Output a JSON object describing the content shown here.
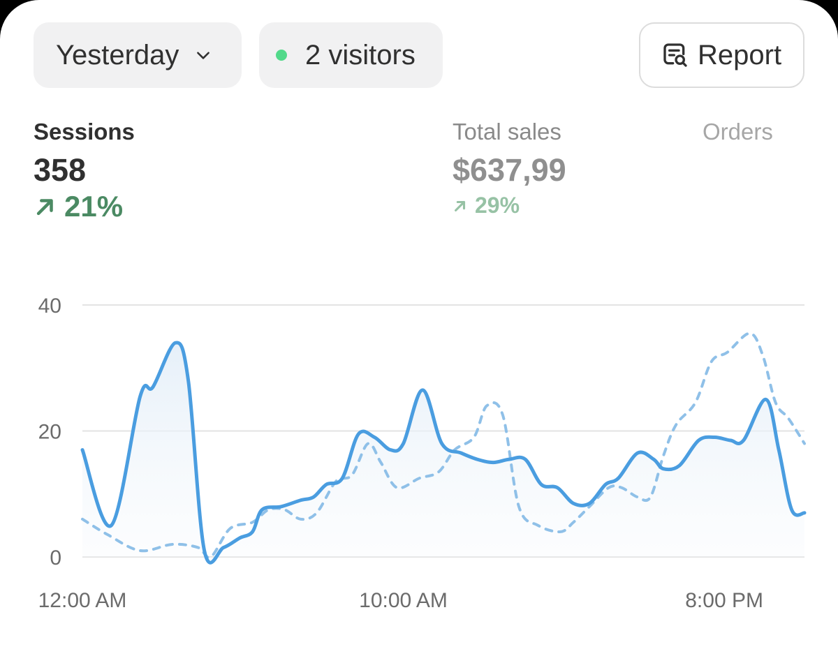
{
  "filters": {
    "date_range": "Yesterday",
    "live_visitors": "2 visitors",
    "report_label": "Report"
  },
  "metrics": {
    "sessions": {
      "label": "Sessions",
      "value": "358",
      "change": "21%"
    },
    "total_sales": {
      "label": "Total sales",
      "value": "$637,99",
      "change": "29%"
    },
    "orders": {
      "label": "Orders"
    }
  },
  "colors": {
    "current_series": "#4a9de0",
    "previous_series": "#8fc0e8",
    "positive_change": "#4b8a63",
    "live_dot": "#52d98a"
  },
  "icons": {
    "range_chevron": "chevron-down-icon",
    "live": "status-dot-icon",
    "report": "report-search-icon",
    "trend_up": "arrow-up-right-icon"
  },
  "chart_data": {
    "type": "line",
    "y_ticks": [
      "0",
      "20",
      "40"
    ],
    "ylim": [
      0,
      40
    ],
    "x_tick_labels": [
      "12:00 AM",
      "10:00 AM",
      "8:00 PM"
    ],
    "x_tick_positions": [
      0,
      10,
      20
    ],
    "xlim": [
      0,
      22.5
    ],
    "grid": true,
    "series": [
      {
        "values": [
          [
            0,
            17
          ],
          [
            0.9,
            5
          ],
          [
            1.8,
            25.5
          ],
          [
            2.2,
            27
          ],
          [
            2.9,
            34
          ],
          [
            3.3,
            28
          ],
          [
            3.8,
            1
          ],
          [
            4.4,
            1.5
          ],
          [
            4.9,
            3
          ],
          [
            5.3,
            4
          ],
          [
            5.6,
            7.5
          ],
          [
            6.2,
            8
          ],
          [
            6.8,
            9
          ],
          [
            7.2,
            9.5
          ],
          [
            7.6,
            11.5
          ],
          [
            8.1,
            12.5
          ],
          [
            8.6,
            19.5
          ],
          [
            9.1,
            19
          ],
          [
            9.6,
            17
          ],
          [
            10.0,
            18
          ],
          [
            10.6,
            26.5
          ],
          [
            11.2,
            18
          ],
          [
            11.8,
            16.5
          ],
          [
            12.3,
            15.5
          ],
          [
            12.8,
            15
          ],
          [
            13.3,
            15.5
          ],
          [
            13.8,
            15.5
          ],
          [
            14.3,
            11.5
          ],
          [
            14.8,
            11
          ],
          [
            15.3,
            8.5
          ],
          [
            15.8,
            8.5
          ],
          [
            16.3,
            11.5
          ],
          [
            16.7,
            12.5
          ],
          [
            17.3,
            16.5
          ],
          [
            17.8,
            15.5
          ],
          [
            18.1,
            14
          ],
          [
            18.6,
            14.5
          ],
          [
            19.2,
            18.5
          ],
          [
            19.7,
            19
          ],
          [
            20.2,
            18.5
          ],
          [
            20.6,
            18.5
          ],
          [
            21.3,
            25
          ],
          [
            21.7,
            17
          ],
          [
            22.1,
            7.5
          ],
          [
            22.5,
            7
          ]
        ]
      },
      {
        "values": [
          [
            0,
            6
          ],
          [
            0.8,
            3.5
          ],
          [
            1.8,
            1
          ],
          [
            2.8,
            2
          ],
          [
            3.6,
            1.5
          ],
          [
            4.0,
            0
          ],
          [
            4.6,
            4.5
          ],
          [
            5.3,
            5.5
          ],
          [
            5.8,
            7.5
          ],
          [
            6.3,
            7.5
          ],
          [
            6.8,
            6
          ],
          [
            7.3,
            7
          ],
          [
            7.9,
            12
          ],
          [
            8.4,
            13
          ],
          [
            8.9,
            18
          ],
          [
            9.3,
            15
          ],
          [
            9.8,
            11
          ],
          [
            10.5,
            12.5
          ],
          [
            11.1,
            13.5
          ],
          [
            11.6,
            17
          ],
          [
            12.2,
            19
          ],
          [
            12.6,
            24
          ],
          [
            13.1,
            22.5
          ],
          [
            13.6,
            8
          ],
          [
            14.2,
            5
          ],
          [
            14.9,
            4
          ],
          [
            15.3,
            5.5
          ],
          [
            15.8,
            8
          ],
          [
            16.4,
            11
          ],
          [
            16.8,
            11
          ],
          [
            17.3,
            9.5
          ],
          [
            17.7,
            9.5
          ],
          [
            18.1,
            16
          ],
          [
            18.5,
            21
          ],
          [
            19.1,
            24.5
          ],
          [
            19.6,
            31
          ],
          [
            20.1,
            32.5
          ],
          [
            20.8,
            35.5
          ],
          [
            21.2,
            32
          ],
          [
            21.6,
            24.5
          ],
          [
            22.0,
            22
          ],
          [
            22.5,
            18
          ]
        ]
      }
    ]
  }
}
